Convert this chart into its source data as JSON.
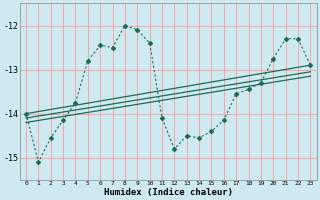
{
  "xlabel": "Humidex (Indice chaleur)",
  "bg_color": "#ceeaf0",
  "grid_color": "#ff9999",
  "line_color": "#1a6b5a",
  "xlim": [
    -0.5,
    23.5
  ],
  "ylim": [
    -15.5,
    -11.5
  ],
  "yticks": [
    -15,
    -14,
    -13,
    -12
  ],
  "xticks": [
    0,
    1,
    2,
    3,
    4,
    5,
    6,
    7,
    8,
    9,
    10,
    11,
    12,
    13,
    14,
    15,
    16,
    17,
    18,
    19,
    20,
    21,
    22,
    23
  ],
  "series1_x": [
    0,
    1,
    2,
    3,
    4,
    5,
    6,
    7,
    8,
    9,
    10,
    11,
    12,
    13,
    14,
    15,
    16,
    17,
    18,
    19,
    20,
    21,
    22,
    23
  ],
  "series1_y": [
    -14.0,
    -15.1,
    -14.55,
    -14.15,
    -13.75,
    -12.8,
    -12.45,
    -12.5,
    -12.0,
    -12.1,
    -12.4,
    -14.1,
    -14.8,
    -14.5,
    -14.55,
    -14.4,
    -14.15,
    -13.55,
    -13.45,
    -13.3,
    -12.75,
    -12.3,
    -12.3,
    -12.9
  ],
  "line1_x": [
    0,
    23
  ],
  "line1_y": [
    -14.0,
    -12.9
  ],
  "line2_x": [
    0,
    23
  ],
  "line2_y": [
    -14.1,
    -13.05
  ],
  "line3_x": [
    0,
    23
  ],
  "line3_y": [
    -14.2,
    -13.15
  ]
}
